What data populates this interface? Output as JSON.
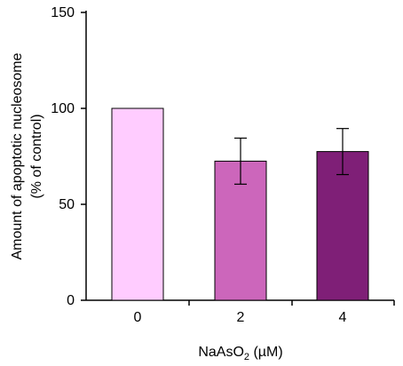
{
  "chart_data": {
    "type": "bar",
    "title": "",
    "categories": [
      "0",
      "2",
      "4"
    ],
    "values": [
      100,
      72.5,
      77.5
    ],
    "errors": [
      0,
      12,
      12
    ],
    "bar_colors": [
      "#ffccff",
      "#cc66bb",
      "#7f1f77"
    ],
    "ylabel_lines": [
      "Amount  of apoptotic nucleosome",
      "(% of control)"
    ],
    "xlabel": {
      "prefix": "NaAsO",
      "subscript": "2",
      "suffix": " (µM)"
    },
    "ylim": [
      0,
      150
    ],
    "yticks": [
      "0",
      "50",
      "100",
      "150"
    ],
    "grid": false,
    "legend": "none"
  }
}
